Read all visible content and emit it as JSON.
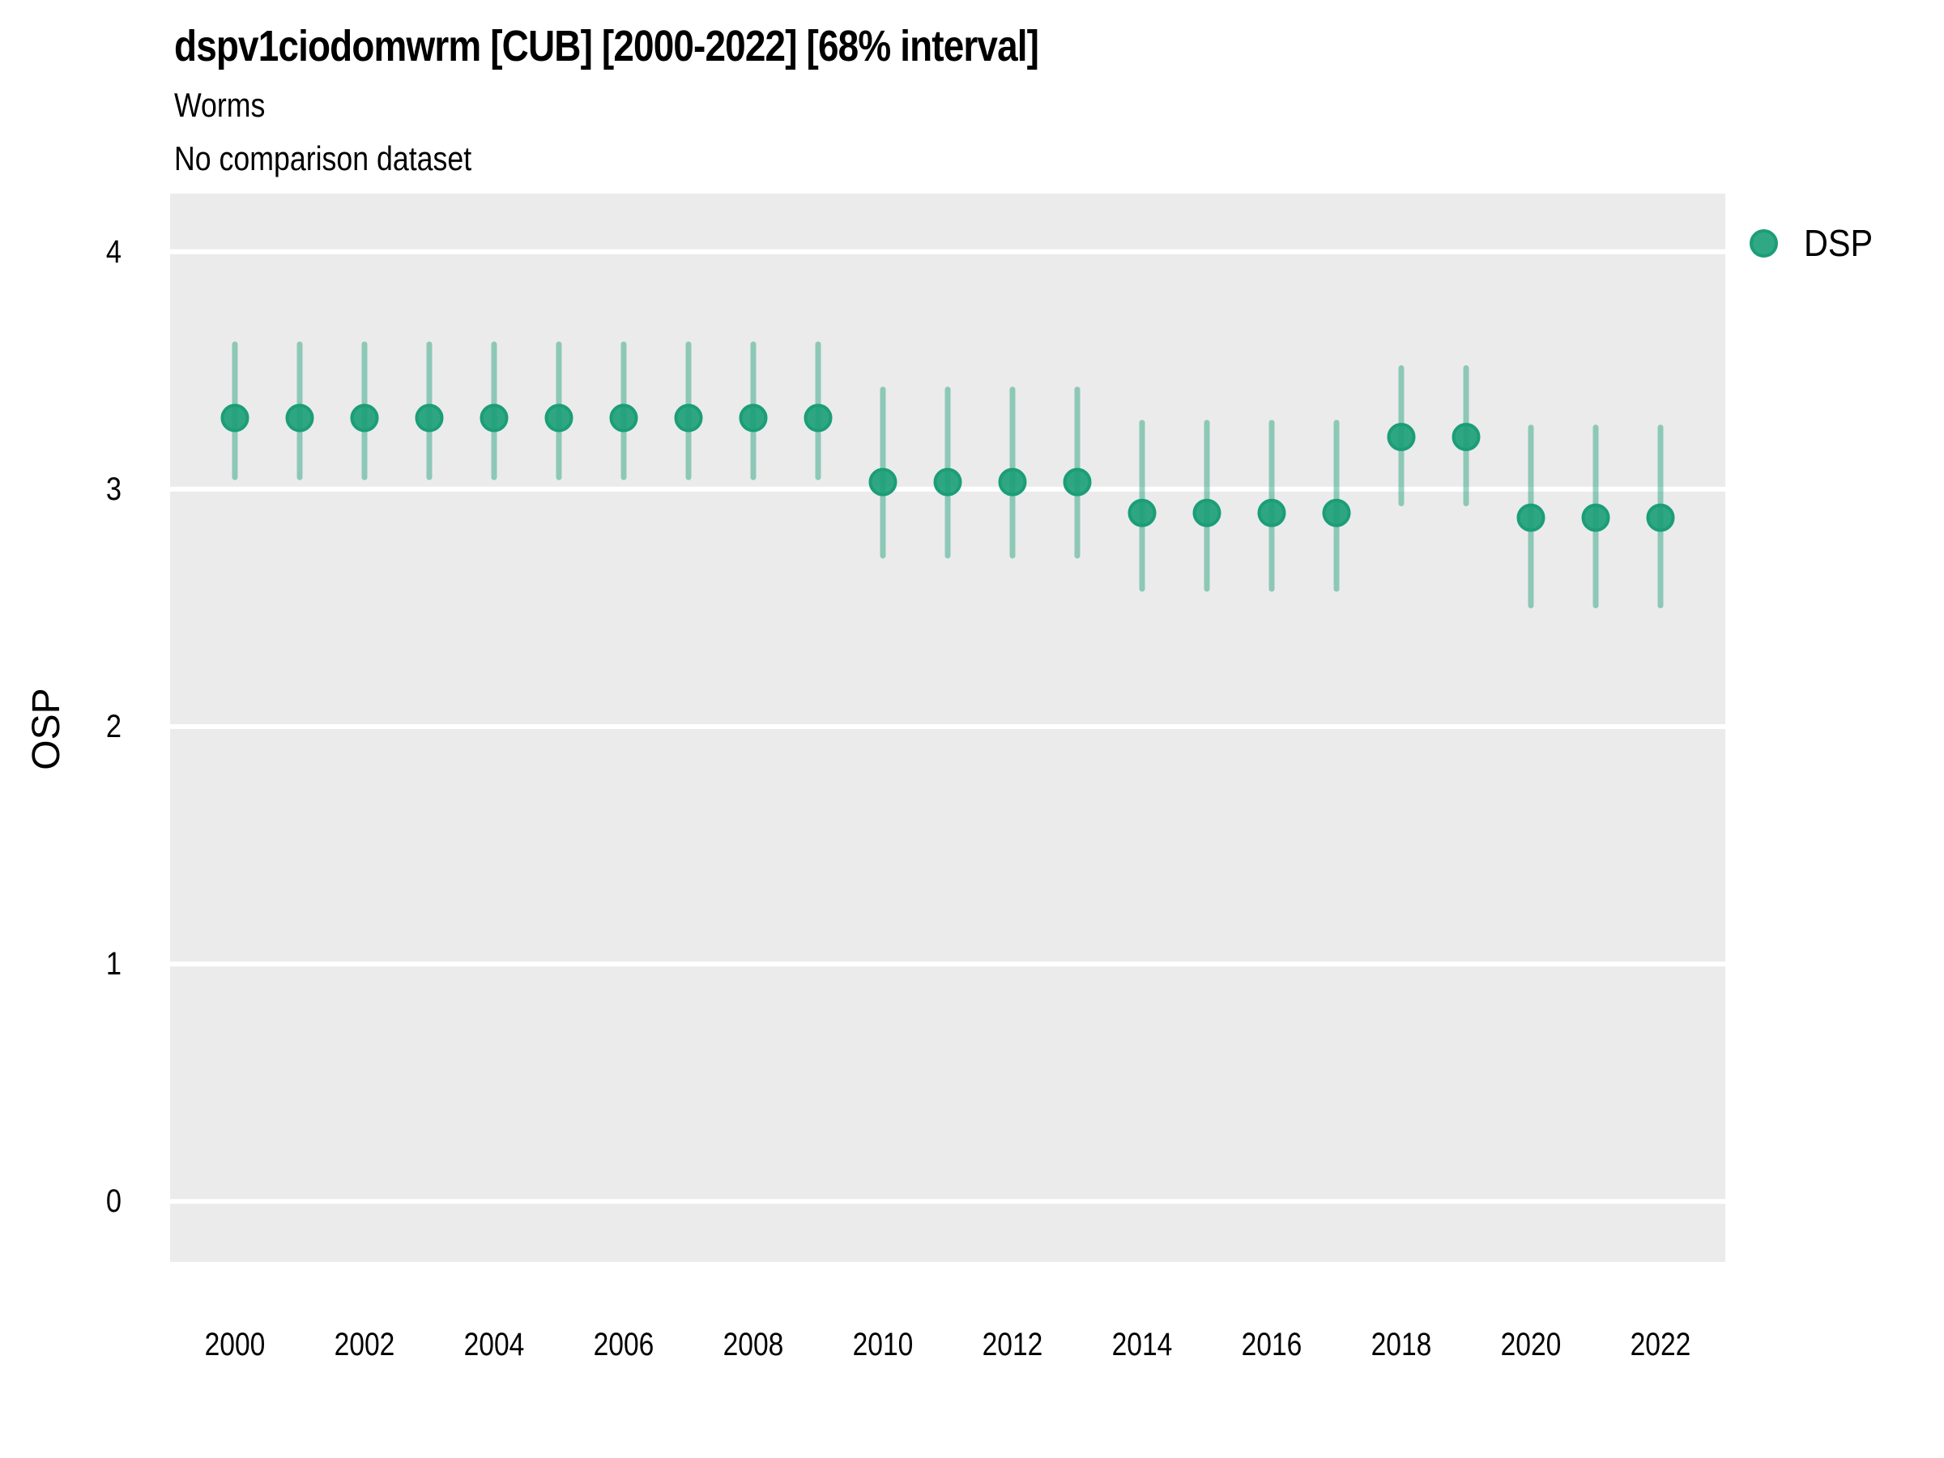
{
  "title": "dspv1ciodomwrm [CUB] [2000-2022] [68% interval]",
  "subtitle": "Worms",
  "comparison_note": "No comparison dataset",
  "axes": {
    "y_label": "OSP",
    "x_label": ""
  },
  "legend": {
    "position": "right-top",
    "items": [
      {
        "label": "DSP",
        "color": "#1b9e77"
      }
    ]
  },
  "colors": {
    "panel_background": "#ebebeb",
    "gridline": "#ffffff",
    "point_color": "#1b9e77",
    "point_fill_alpha": 0.9,
    "interval_alpha": 0.45,
    "text": "#000000",
    "page_background": "#ffffff"
  },
  "chart_data": {
    "type": "scatter",
    "mark": "pointrange",
    "title": "dspv1ciodomwrm [CUB] [2000-2022] [68% interval]",
    "subtitle": "Worms",
    "note": "No comparison dataset",
    "interval_level": "68%",
    "xlabel": "",
    "ylabel": "OSP",
    "xlim": [
      1999,
      2023
    ],
    "ylim": [
      -0.255,
      4.245
    ],
    "x_ticks": [
      2000,
      2002,
      2004,
      2006,
      2008,
      2010,
      2012,
      2014,
      2016,
      2018,
      2020,
      2022
    ],
    "y_ticks": [
      0,
      1,
      2,
      3,
      4
    ],
    "grid": "horizontal-major-only",
    "legend_position": "right-top",
    "series": [
      {
        "name": "DSP",
        "color": "#1b9e77",
        "x": [
          2000,
          2001,
          2002,
          2003,
          2004,
          2005,
          2006,
          2007,
          2008,
          2009,
          2010,
          2011,
          2012,
          2013,
          2014,
          2015,
          2016,
          2017,
          2018,
          2019,
          2020,
          2021,
          2022
        ],
        "y": [
          3.3,
          3.3,
          3.3,
          3.3,
          3.3,
          3.3,
          3.3,
          3.3,
          3.3,
          3.3,
          3.03,
          3.03,
          3.03,
          3.03,
          2.9,
          2.9,
          2.9,
          2.9,
          3.22,
          3.22,
          2.88,
          2.88,
          2.88
        ],
        "y_lo": [
          3.05,
          3.05,
          3.05,
          3.05,
          3.05,
          3.05,
          3.05,
          3.05,
          3.05,
          3.05,
          2.72,
          2.72,
          2.72,
          2.72,
          2.58,
          2.58,
          2.58,
          2.58,
          2.94,
          2.94,
          2.51,
          2.51,
          2.51
        ],
        "y_hi": [
          3.61,
          3.61,
          3.61,
          3.61,
          3.61,
          3.61,
          3.61,
          3.61,
          3.61,
          3.61,
          3.42,
          3.42,
          3.42,
          3.42,
          3.28,
          3.28,
          3.28,
          3.28,
          3.51,
          3.51,
          3.26,
          3.26,
          3.26
        ]
      }
    ]
  }
}
